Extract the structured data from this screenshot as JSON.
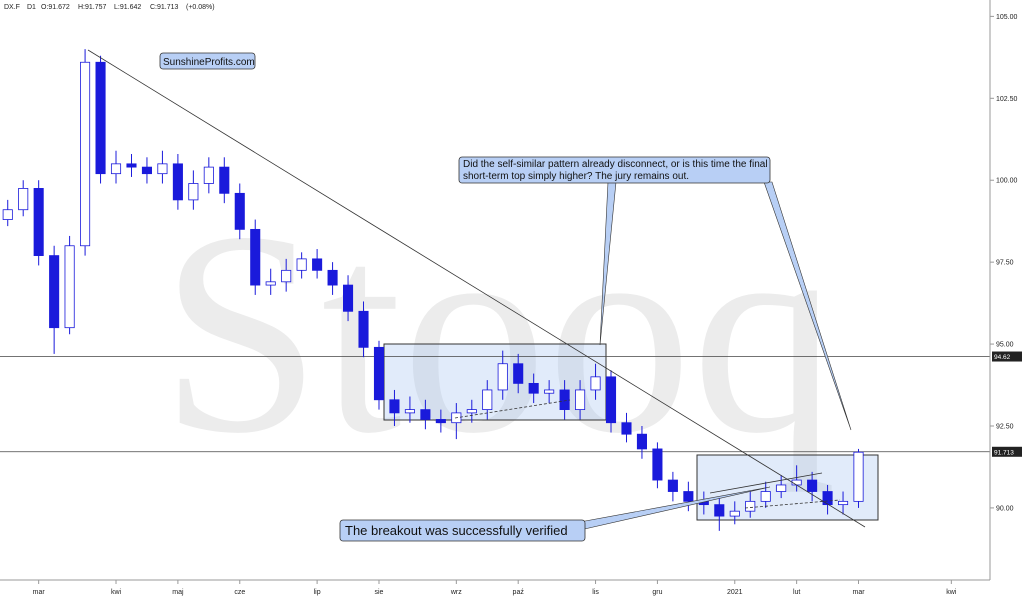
{
  "chart_data": {
    "type": "candlestick",
    "header": {
      "symbol": "DX.F",
      "interval": "D1",
      "open": "O:91.672",
      "high": "H:91.757",
      "low": "L:91.642",
      "close": "C:91.713",
      "change": "(+0.08%)"
    },
    "watermark": "Stooq",
    "annotations": {
      "source": "SunshineProfits.com",
      "callout": [
        "Did the self-similar pattern already disconnect, or is this time the final",
        "short-term top simply higher? The jury remains out."
      ],
      "breakout": "The breakout was successfully verified"
    },
    "categories": [
      null,
      null,
      "mar",
      null,
      null,
      null,
      null,
      "kwi",
      null,
      null,
      null,
      "maj",
      null,
      null,
      null,
      "cze",
      null,
      null,
      null,
      null,
      "lip",
      null,
      null,
      null,
      "sie",
      null,
      null,
      null,
      null,
      "wrz",
      null,
      null,
      null,
      "paź",
      null,
      null,
      null,
      null,
      "lis",
      null,
      null,
      null,
      "gru",
      null,
      null,
      null,
      null,
      "2021",
      null,
      null,
      null,
      "lut",
      null,
      null,
      null,
      "mar",
      null,
      null,
      null,
      null,
      null,
      "kwi",
      null,
      null
    ],
    "open": [
      98.8,
      99.1,
      99.75,
      97.7,
      95.5,
      98.0,
      103.6,
      100.2,
      100.5,
      100.4,
      100.2,
      100.5,
      99.4,
      99.9,
      100.4,
      99.6,
      98.5,
      96.8,
      96.9,
      97.25,
      97.6,
      97.25,
      96.8,
      96.0,
      94.9,
      93.3,
      92.9,
      93.0,
      92.7,
      92.6,
      92.9,
      93.0,
      93.6,
      94.4,
      93.8,
      93.5,
      93.6,
      93.0,
      93.6,
      94.0,
      92.6,
      92.25,
      91.8,
      90.85,
      90.5,
      90.2,
      90.1,
      89.75,
      89.9,
      90.2,
      90.5,
      90.7,
      90.85,
      90.5,
      90.1,
      90.2,
      null,
      null,
      null,
      null,
      null,
      null,
      null,
      null
    ],
    "high": [
      99.4,
      100.0,
      100.0,
      98.0,
      98.3,
      104.0,
      103.8,
      100.9,
      100.8,
      100.7,
      100.9,
      100.8,
      100.3,
      100.7,
      100.7,
      99.9,
      98.8,
      97.3,
      97.6,
      97.8,
      97.9,
      97.5,
      97.1,
      96.3,
      95.1,
      93.6,
      93.4,
      93.3,
      93.0,
      93.2,
      93.3,
      93.9,
      94.8,
      94.7,
      94.1,
      93.9,
      93.9,
      93.9,
      94.4,
      94.2,
      92.9,
      92.5,
      92.0,
      91.1,
      90.8,
      90.5,
      90.3,
      90.2,
      90.5,
      90.8,
      91.0,
      91.3,
      91.1,
      90.7,
      90.5,
      91.8,
      null,
      null,
      null,
      null,
      null,
      null,
      null,
      null
    ],
    "low": [
      98.6,
      98.9,
      97.4,
      94.7,
      95.3,
      97.7,
      99.9,
      99.9,
      100.1,
      99.9,
      99.9,
      99.1,
      99.1,
      99.6,
      99.3,
      98.2,
      96.5,
      96.5,
      96.6,
      97.0,
      97.0,
      96.5,
      95.7,
      94.6,
      93.0,
      92.5,
      92.6,
      92.4,
      92.3,
      92.1,
      92.6,
      92.7,
      93.3,
      93.5,
      93.2,
      93.2,
      92.7,
      92.7,
      93.3,
      92.3,
      92.0,
      91.5,
      90.6,
      90.2,
      89.9,
      89.8,
      89.3,
      89.5,
      89.7,
      90.0,
      90.3,
      90.5,
      90.2,
      89.8,
      89.8,
      90.0,
      null,
      null,
      null,
      null,
      null,
      null,
      null,
      null
    ],
    "close": [
      99.1,
      99.75,
      97.7,
      95.5,
      98.0,
      103.6,
      100.2,
      100.5,
      100.4,
      100.2,
      100.5,
      99.4,
      99.9,
      100.4,
      99.6,
      98.5,
      96.8,
      96.9,
      97.25,
      97.6,
      97.25,
      96.8,
      96.0,
      94.9,
      93.3,
      92.9,
      93.0,
      92.7,
      92.6,
      92.9,
      93.0,
      93.6,
      94.4,
      93.8,
      93.5,
      93.6,
      93.0,
      93.6,
      94.0,
      92.6,
      92.25,
      91.8,
      90.85,
      90.5,
      90.2,
      90.1,
      89.75,
      89.9,
      90.2,
      90.5,
      90.7,
      90.85,
      90.5,
      90.1,
      90.2,
      91.7,
      null,
      null,
      null,
      null,
      null,
      null,
      null,
      null
    ],
    "color": "#1a1adb",
    "ylim": [
      87.8,
      105.5
    ],
    "yticks": [
      {
        "value": 90,
        "label": "90.00"
      },
      {
        "value": 92.5,
        "label": "92.50"
      },
      {
        "value": 95,
        "label": "95.00"
      },
      {
        "value": 97.5,
        "label": "97.50"
      },
      {
        "value": 100,
        "label": "100.00"
      },
      {
        "value": 102.5,
        "label": "102.50"
      },
      {
        "value": 105,
        "label": "105.00"
      }
    ],
    "hlines": [
      {
        "value": 94.62,
        "label": "94.62"
      },
      {
        "value": 91.713,
        "label": "91.713"
      }
    ]
  }
}
